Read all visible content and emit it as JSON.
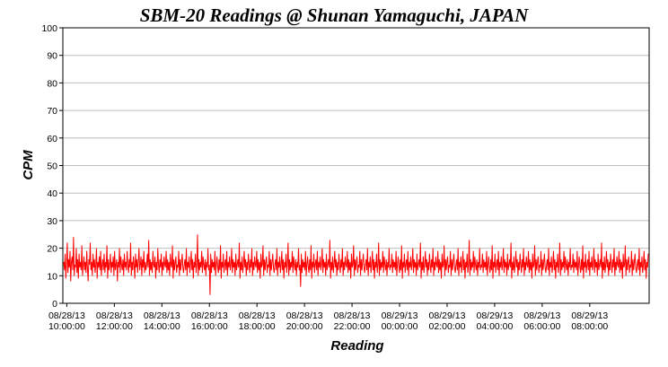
{
  "chart_data": {
    "type": "line",
    "title": "SBM-20 Readings @ Shunan Yamaguchi, JAPAN",
    "xlabel": "Reading",
    "ylabel": "CPM",
    "ylim": [
      0,
      100
    ],
    "yticks": [
      0,
      10,
      20,
      30,
      40,
      50,
      60,
      70,
      80,
      90,
      100
    ],
    "x_range": [
      "08/28/13 09:50:00",
      "08/29/13 10:30:00"
    ],
    "grid": true,
    "legend": "none",
    "xtick_labels": [
      {
        "x": "08/28/13 10:00:00",
        "date": "08/28/13",
        "time": "10:00:00"
      },
      {
        "x": "08/28/13 12:00:00",
        "date": "08/28/13",
        "time": "12:00:00"
      },
      {
        "x": "08/28/13 14:00:00",
        "date": "08/28/13",
        "time": "14:00:00"
      },
      {
        "x": "08/28/13 16:00:00",
        "date": "08/28/13",
        "time": "16:00:00"
      },
      {
        "x": "08/28/13 18:00:00",
        "date": "08/28/13",
        "time": "18:00:00"
      },
      {
        "x": "08/28/13 20:00:00",
        "date": "08/28/13",
        "time": "20:00:00"
      },
      {
        "x": "08/28/13 22:00:00",
        "date": "08/28/13",
        "time": "22:00:00"
      },
      {
        "x": "08/29/13 00:00:00",
        "date": "08/29/13",
        "time": "00:00:00"
      },
      {
        "x": "08/29/13 02:00:00",
        "date": "08/29/13",
        "time": "02:00:00"
      },
      {
        "x": "08/29/13 04:00:00",
        "date": "08/29/13",
        "time": "04:00:00"
      },
      {
        "x": "08/29/13 06:00:00",
        "date": "08/29/13",
        "time": "06:00:00"
      },
      {
        "x": "08/29/13 08:00:00",
        "date": "08/29/13",
        "time": "08:00:00"
      }
    ],
    "series": [
      {
        "color": "#ff0000",
        "sampling": "1 reading per minute",
        "values": [
          15,
          12,
          18,
          9,
          14,
          22,
          11,
          16,
          13,
          19,
          8,
          15,
          17,
          12,
          24,
          10,
          14,
          13,
          20,
          11,
          16,
          9,
          18,
          13,
          15,
          12,
          21,
          10,
          14,
          17,
          12,
          15,
          11,
          19,
          13,
          8,
          16,
          14,
          22,
          12,
          15,
          10,
          18,
          13,
          16,
          11,
          14,
          20,
          9,
          15,
          13,
          17,
          12,
          19,
          10,
          14,
          16,
          12,
          18,
          11,
          15,
          13,
          21,
          9,
          16,
          12,
          14,
          18,
          11,
          15,
          13,
          17,
          10,
          19,
          12,
          14,
          16,
          8,
          15,
          13,
          20,
          11,
          17,
          14,
          12,
          16,
          10,
          18,
          13,
          15,
          12,
          19,
          14,
          11,
          16,
          13,
          22,
          10,
          15,
          12,
          17,
          14,
          9,
          18,
          13,
          16,
          11,
          15,
          20,
          12,
          14,
          17,
          10,
          16,
          13,
          19,
          11,
          15,
          12,
          14,
          18,
          13,
          23,
          10,
          16,
          12,
          15,
          11,
          19,
          14,
          13,
          17,
          9,
          15,
          12,
          20,
          14,
          11,
          16,
          13,
          18,
          10,
          15,
          12,
          17,
          14,
          13,
          19,
          11,
          16,
          12,
          15,
          10,
          18,
          14,
          13,
          21,
          9,
          16,
          12,
          15,
          17,
          11,
          14,
          13,
          19,
          10,
          16,
          12,
          15,
          18,
          13,
          11,
          14,
          16,
          12,
          20,
          10,
          15,
          13,
          17,
          11,
          14,
          19,
          12,
          16,
          9,
          15,
          13,
          18,
          11,
          14,
          25,
          10,
          16,
          12,
          15,
          13,
          19,
          11,
          17,
          14,
          12,
          16,
          10,
          15,
          13,
          20,
          12,
          14,
          3,
          18,
          11,
          16,
          13,
          15,
          12,
          19,
          10,
          14,
          17,
          13,
          11,
          16,
          12,
          21,
          9,
          15,
          13,
          18,
          11,
          14,
          16,
          12,
          19,
          10,
          15,
          13,
          17,
          12,
          14,
          20,
          11,
          16,
          13,
          15,
          10,
          18,
          12,
          14,
          16,
          13,
          22,
          9,
          15,
          12,
          17,
          11,
          14,
          19,
          13,
          16,
          10,
          15,
          12,
          18,
          14,
          11,
          16,
          13,
          20,
          10,
          15,
          12,
          17,
          14,
          13,
          19,
          11,
          16,
          12,
          15,
          9,
          18,
          13,
          14,
          21,
          10,
          16,
          12,
          15,
          17,
          11,
          14,
          13,
          19,
          10,
          16,
          12,
          15,
          18,
          13,
          11,
          14,
          16,
          12,
          20,
          10,
          15,
          13,
          17,
          11,
          14,
          19,
          12,
          16,
          9,
          15,
          13,
          18,
          11,
          14,
          22,
          10,
          16,
          12,
          15,
          13,
          19,
          11,
          17,
          14,
          12,
          16,
          10,
          15,
          13,
          20,
          12,
          14,
          6,
          18,
          11,
          16,
          13,
          15,
          12,
          19,
          10,
          14,
          17,
          13,
          11,
          16,
          12,
          21,
          9,
          15,
          13,
          18,
          11,
          14,
          16,
          12,
          19,
          10,
          15,
          13,
          17,
          12,
          14,
          20,
          11,
          16,
          13,
          15,
          10,
          18,
          12,
          14,
          16,
          13,
          23,
          9,
          15,
          12,
          17,
          11,
          14,
          19,
          13,
          16,
          10,
          15,
          12,
          18,
          14,
          11,
          16,
          13,
          20,
          10,
          15,
          12,
          17,
          14,
          13,
          19,
          11,
          16,
          12,
          15,
          9,
          18,
          13,
          14,
          21,
          10,
          16,
          12,
          15,
          17,
          11,
          14,
          13,
          19,
          10,
          16,
          12,
          15,
          18,
          13,
          11,
          14,
          16,
          12,
          20,
          10,
          15,
          13,
          17,
          11,
          14,
          19,
          12,
          16,
          9,
          15,
          13,
          18,
          11,
          14,
          22,
          10,
          16,
          12,
          15,
          13,
          19,
          11,
          17,
          14,
          12,
          16,
          10,
          15,
          13,
          20,
          12,
          14,
          13,
          18,
          11,
          16,
          13,
          15,
          12,
          19,
          10,
          14,
          17,
          13,
          11,
          16,
          12,
          21,
          9,
          15,
          13,
          18,
          11,
          14,
          16,
          12,
          19,
          10,
          15,
          13,
          17,
          12,
          14,
          20,
          11,
          16,
          13,
          15,
          10,
          18,
          12,
          14,
          16,
          13,
          22,
          9,
          15,
          12,
          17,
          11,
          14,
          19,
          13,
          16,
          10,
          15,
          12,
          18,
          14,
          11,
          16,
          13,
          20,
          10,
          15,
          12,
          17,
          14,
          13,
          19,
          11,
          16,
          12,
          15,
          9,
          18,
          13,
          14,
          21,
          10,
          16,
          12,
          15,
          17,
          11,
          14,
          13,
          19,
          10,
          16,
          12,
          15,
          18,
          13,
          11,
          14,
          16,
          12,
          20,
          10,
          15,
          13,
          17,
          11,
          14,
          19,
          12,
          16,
          9,
          15,
          13,
          18,
          11,
          14,
          23,
          10,
          16,
          12,
          15,
          13,
          19,
          11,
          17,
          14,
          12,
          16,
          10,
          15,
          13,
          20,
          12,
          14,
          13,
          18,
          11,
          16,
          13,
          15,
          12,
          19,
          10,
          14,
          17,
          13,
          11,
          16,
          12,
          21,
          9,
          15,
          13,
          18,
          11,
          14,
          16,
          12,
          19,
          10,
          15,
          13,
          17,
          12,
          14,
          20,
          11,
          16,
          13,
          15,
          10,
          18,
          12,
          14,
          16,
          13,
          22,
          9,
          15,
          12,
          17,
          11,
          14,
          19,
          13,
          16,
          10,
          15,
          12,
          18,
          14,
          11,
          16,
          13,
          20,
          10,
          15,
          12,
          17,
          14,
          13,
          19,
          11,
          16,
          12,
          15,
          9,
          18,
          13,
          14,
          21,
          10,
          16,
          12,
          15,
          17,
          11,
          14,
          13,
          19,
          10,
          16,
          12,
          15,
          18,
          13,
          11,
          14,
          16,
          12,
          20,
          10,
          15,
          13,
          17,
          11,
          14,
          19,
          12,
          16,
          9,
          15,
          13,
          18,
          11,
          14,
          22,
          10,
          16,
          12,
          15,
          13,
          19,
          11,
          17,
          14,
          12,
          16,
          10,
          15,
          13,
          20,
          12,
          14,
          13,
          18,
          11,
          16,
          13,
          15,
          12,
          19,
          10,
          14,
          17,
          13,
          11,
          16,
          12,
          21,
          9,
          15,
          13,
          18,
          11,
          14,
          16,
          12,
          19,
          10,
          15,
          13,
          17,
          12,
          14,
          20,
          11,
          16,
          13,
          15,
          10,
          18,
          12,
          14,
          16,
          13,
          22,
          9,
          15,
          12,
          17,
          11,
          14,
          19,
          13,
          16,
          10,
          15,
          12,
          18,
          14,
          11,
          16,
          13,
          20,
          10,
          15,
          12,
          17,
          14,
          13,
          19,
          11,
          16,
          12,
          15,
          9,
          18,
          13,
          14,
          21,
          10,
          16,
          12,
          15,
          17,
          11,
          14,
          13,
          19,
          10,
          16,
          12,
          15,
          18,
          13,
          11,
          14,
          16,
          12,
          20,
          10,
          15,
          13,
          17,
          11,
          14,
          19,
          12,
          16,
          9,
          15,
          13,
          18
        ]
      }
    ]
  }
}
